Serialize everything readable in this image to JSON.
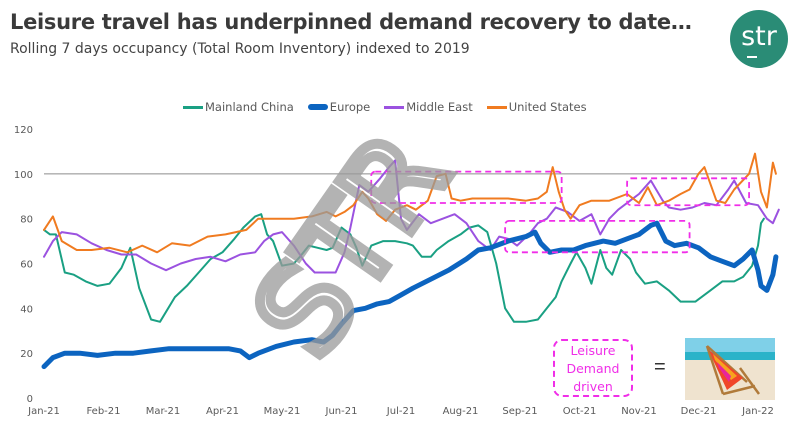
{
  "header": {
    "title": "Leisure travel has underpinned demand recovery to date…",
    "subtitle": "Rolling 7 days occupancy (Total Room Inventory) indexed to 2019",
    "logo_text": "str"
  },
  "annotation": {
    "label_lines": [
      "Leisure",
      "Demand",
      "driven"
    ],
    "equals": "=",
    "image": "beach-chair-photo"
  },
  "watermark": "STR",
  "colors": {
    "mainland_china": "#1aa083",
    "europe": "#0c64c0",
    "middle_east": "#9b52e0",
    "united_states": "#f07b20",
    "highlight": "#f02ee8",
    "reference_line": "#8c8c8c"
  },
  "chart_data": {
    "type": "line",
    "title": "",
    "xlabel": "",
    "ylabel": "",
    "ylim": [
      0,
      120
    ],
    "xlim": [
      0,
      12
    ],
    "yticks": [
      "0",
      "20",
      "40",
      "60",
      "80",
      "100",
      "120"
    ],
    "ytick_values": [
      0,
      20,
      40,
      60,
      80,
      100,
      120
    ],
    "xticks": [
      "Jan-21",
      "Feb-21",
      "Mar-21",
      "Apr-21",
      "May-21",
      "Jun-21",
      "Jul-21",
      "Aug-21",
      "Sep-21",
      "Oct-21",
      "Nov-21",
      "Dec-21",
      "Jan-22"
    ],
    "reference_line": 100,
    "grid": false,
    "legend_position": "top",
    "x_units": "months since Jan-21",
    "series": [
      {
        "name": "Mainland China",
        "key": "mainland_china",
        "points": [
          [
            0,
            75
          ],
          [
            0.1,
            73
          ],
          [
            0.2,
            73
          ],
          [
            0.35,
            56
          ],
          [
            0.5,
            55
          ],
          [
            0.7,
            52
          ],
          [
            0.9,
            50
          ],
          [
            1.1,
            51
          ],
          [
            1.3,
            58
          ],
          [
            1.45,
            67
          ],
          [
            1.6,
            49
          ],
          [
            1.8,
            35
          ],
          [
            1.95,
            34
          ],
          [
            2.2,
            45
          ],
          [
            2.4,
            50
          ],
          [
            2.6,
            56
          ],
          [
            2.8,
            62
          ],
          [
            3.0,
            65
          ],
          [
            3.2,
            71
          ],
          [
            3.35,
            76
          ],
          [
            3.55,
            81
          ],
          [
            3.65,
            82
          ],
          [
            3.75,
            73
          ],
          [
            3.85,
            70
          ],
          [
            4.0,
            59
          ],
          [
            4.2,
            60
          ],
          [
            4.3,
            63
          ],
          [
            4.45,
            68
          ],
          [
            4.6,
            67
          ],
          [
            4.75,
            66
          ],
          [
            4.85,
            67
          ],
          [
            5.0,
            76
          ],
          [
            5.15,
            73
          ],
          [
            5.25,
            67
          ],
          [
            5.35,
            59
          ],
          [
            5.5,
            68
          ],
          [
            5.7,
            70
          ],
          [
            5.9,
            70
          ],
          [
            6.1,
            69
          ],
          [
            6.2,
            68
          ],
          [
            6.35,
            63
          ],
          [
            6.5,
            63
          ],
          [
            6.6,
            66
          ],
          [
            6.8,
            70
          ],
          [
            7.0,
            73
          ],
          [
            7.15,
            76
          ],
          [
            7.3,
            77
          ],
          [
            7.45,
            74
          ],
          [
            7.6,
            60
          ],
          [
            7.75,
            40
          ],
          [
            7.9,
            34
          ],
          [
            8.1,
            34
          ],
          [
            8.3,
            35
          ],
          [
            8.45,
            40
          ],
          [
            8.6,
            45
          ],
          [
            8.7,
            52
          ],
          [
            8.85,
            60
          ],
          [
            8.95,
            65
          ],
          [
            9.1,
            58
          ],
          [
            9.2,
            51
          ],
          [
            9.35,
            66
          ],
          [
            9.45,
            58
          ],
          [
            9.55,
            55
          ],
          [
            9.7,
            66
          ],
          [
            9.85,
            62
          ],
          [
            9.95,
            56
          ],
          [
            10.1,
            51
          ],
          [
            10.3,
            52
          ],
          [
            10.5,
            48
          ],
          [
            10.7,
            43
          ],
          [
            10.95,
            43
          ],
          [
            11.2,
            48
          ],
          [
            11.4,
            52
          ],
          [
            11.6,
            52
          ],
          [
            11.75,
            54
          ],
          [
            11.9,
            59
          ],
          [
            12.0,
            68
          ],
          [
            12.05,
            78
          ],
          [
            12.1,
            80
          ]
        ]
      },
      {
        "name": "Europe",
        "key": "europe",
        "points": [
          [
            0,
            14
          ],
          [
            0.15,
            18
          ],
          [
            0.35,
            20
          ],
          [
            0.6,
            20
          ],
          [
            0.9,
            19
          ],
          [
            1.2,
            20
          ],
          [
            1.5,
            20
          ],
          [
            1.8,
            21
          ],
          [
            2.1,
            22
          ],
          [
            2.5,
            22
          ],
          [
            2.8,
            22
          ],
          [
            3.1,
            22
          ],
          [
            3.3,
            21
          ],
          [
            3.45,
            18
          ],
          [
            3.6,
            20
          ],
          [
            3.9,
            23
          ],
          [
            4.2,
            25
          ],
          [
            4.5,
            26
          ],
          [
            4.7,
            25
          ],
          [
            4.85,
            28
          ],
          [
            5.0,
            33
          ],
          [
            5.2,
            39
          ],
          [
            5.4,
            40
          ],
          [
            5.6,
            42
          ],
          [
            5.8,
            43
          ],
          [
            6.0,
            46
          ],
          [
            6.2,
            49
          ],
          [
            6.5,
            53
          ],
          [
            6.8,
            57
          ],
          [
            7.1,
            62
          ],
          [
            7.3,
            66
          ],
          [
            7.5,
            67
          ],
          [
            7.8,
            70
          ],
          [
            8.1,
            72
          ],
          [
            8.25,
            74
          ],
          [
            8.35,
            69
          ],
          [
            8.5,
            65
          ],
          [
            8.7,
            66
          ],
          [
            8.9,
            66
          ],
          [
            9.1,
            68
          ],
          [
            9.4,
            70
          ],
          [
            9.6,
            69
          ],
          [
            9.8,
            71
          ],
          [
            10.0,
            73
          ],
          [
            10.2,
            77
          ],
          [
            10.3,
            78
          ],
          [
            10.45,
            70
          ],
          [
            10.6,
            68
          ],
          [
            10.8,
            69
          ],
          [
            11.0,
            67
          ],
          [
            11.2,
            63
          ],
          [
            11.4,
            61
          ],
          [
            11.6,
            59
          ],
          [
            11.75,
            62
          ],
          [
            11.9,
            66
          ],
          [
            12.0,
            57
          ],
          [
            12.05,
            50
          ],
          [
            12.15,
            48
          ],
          [
            12.25,
            55
          ],
          [
            12.3,
            63
          ]
        ]
      },
      {
        "name": "Middle East",
        "key": "middle_east",
        "points": [
          [
            0,
            63
          ],
          [
            0.15,
            70
          ],
          [
            0.3,
            74
          ],
          [
            0.55,
            73
          ],
          [
            0.8,
            69
          ],
          [
            1.05,
            66
          ],
          [
            1.3,
            64
          ],
          [
            1.55,
            64
          ],
          [
            1.8,
            60
          ],
          [
            2.05,
            57
          ],
          [
            2.3,
            60
          ],
          [
            2.55,
            62
          ],
          [
            2.8,
            63
          ],
          [
            3.05,
            61
          ],
          [
            3.3,
            64
          ],
          [
            3.55,
            65
          ],
          [
            3.7,
            70
          ],
          [
            3.85,
            73
          ],
          [
            4.0,
            74
          ],
          [
            4.2,
            68
          ],
          [
            4.4,
            60
          ],
          [
            4.55,
            56
          ],
          [
            4.75,
            56
          ],
          [
            4.9,
            56
          ],
          [
            5.05,
            65
          ],
          [
            5.15,
            76
          ],
          [
            5.3,
            95
          ],
          [
            5.45,
            92
          ],
          [
            5.65,
            98
          ],
          [
            5.8,
            103
          ],
          [
            5.9,
            106
          ],
          [
            6.0,
            80
          ],
          [
            6.1,
            75
          ],
          [
            6.3,
            82
          ],
          [
            6.5,
            78
          ],
          [
            6.7,
            80
          ],
          [
            6.9,
            82
          ],
          [
            7.1,
            78
          ],
          [
            7.3,
            70
          ],
          [
            7.5,
            66
          ],
          [
            7.65,
            72
          ],
          [
            7.8,
            71
          ],
          [
            7.95,
            68
          ],
          [
            8.15,
            73
          ],
          [
            8.3,
            78
          ],
          [
            8.45,
            80
          ],
          [
            8.6,
            85
          ],
          [
            8.8,
            83
          ],
          [
            9.0,
            79
          ],
          [
            9.2,
            82
          ],
          [
            9.35,
            73
          ],
          [
            9.5,
            80
          ],
          [
            9.65,
            84
          ],
          [
            9.85,
            88
          ],
          [
            10.0,
            91
          ],
          [
            10.2,
            97
          ],
          [
            10.4,
            88
          ],
          [
            10.5,
            85
          ],
          [
            10.7,
            84
          ],
          [
            10.9,
            85
          ],
          [
            11.1,
            87
          ],
          [
            11.3,
            86
          ],
          [
            11.5,
            93
          ],
          [
            11.6,
            97
          ],
          [
            11.8,
            87
          ],
          [
            12.0,
            86
          ],
          [
            12.15,
            80
          ],
          [
            12.25,
            78
          ],
          [
            12.35,
            84
          ]
        ]
      },
      {
        "name": "United States",
        "key": "united_states",
        "points": [
          [
            0,
            75
          ],
          [
            0.15,
            81
          ],
          [
            0.3,
            70
          ],
          [
            0.55,
            66
          ],
          [
            0.8,
            66
          ],
          [
            1.1,
            67
          ],
          [
            1.4,
            65
          ],
          [
            1.65,
            68
          ],
          [
            1.9,
            65
          ],
          [
            2.15,
            69
          ],
          [
            2.45,
            68
          ],
          [
            2.75,
            72
          ],
          [
            3.05,
            73
          ],
          [
            3.4,
            75
          ],
          [
            3.6,
            80
          ],
          [
            3.85,
            80
          ],
          [
            4.2,
            80
          ],
          [
            4.5,
            81
          ],
          [
            4.75,
            83
          ],
          [
            4.9,
            81
          ],
          [
            5.05,
            83
          ],
          [
            5.2,
            86
          ],
          [
            5.35,
            92
          ],
          [
            5.45,
            89
          ],
          [
            5.6,
            82
          ],
          [
            5.75,
            79
          ],
          [
            5.9,
            84
          ],
          [
            6.1,
            86
          ],
          [
            6.25,
            84
          ],
          [
            6.45,
            88
          ],
          [
            6.6,
            99
          ],
          [
            6.75,
            100
          ],
          [
            6.85,
            89
          ],
          [
            7.0,
            88
          ],
          [
            7.2,
            89
          ],
          [
            7.5,
            89
          ],
          [
            7.8,
            89
          ],
          [
            8.1,
            88
          ],
          [
            8.3,
            89
          ],
          [
            8.45,
            92
          ],
          [
            8.55,
            103
          ],
          [
            8.65,
            92
          ],
          [
            8.75,
            84
          ],
          [
            8.85,
            80
          ],
          [
            9.0,
            86
          ],
          [
            9.2,
            88
          ],
          [
            9.5,
            88
          ],
          [
            9.8,
            91
          ],
          [
            10.0,
            87
          ],
          [
            10.15,
            94
          ],
          [
            10.3,
            86
          ],
          [
            10.5,
            88
          ],
          [
            10.7,
            91
          ],
          [
            10.85,
            93
          ],
          [
            11.0,
            100
          ],
          [
            11.1,
            103
          ],
          [
            11.3,
            88
          ],
          [
            11.45,
            87
          ],
          [
            11.6,
            93
          ],
          [
            11.85,
            100
          ],
          [
            11.95,
            109
          ],
          [
            12.05,
            92
          ],
          [
            12.15,
            85
          ],
          [
            12.25,
            105
          ],
          [
            12.3,
            100
          ]
        ]
      }
    ],
    "highlight_boxes": [
      {
        "x0": 5.5,
        "x1": 8.7,
        "y0": 87,
        "y1": 101
      },
      {
        "x0": 7.75,
        "x1": 10.85,
        "y0": 65,
        "y1": 79
      },
      {
        "x0": 9.8,
        "x1": 11.85,
        "y0": 86,
        "y1": 98
      }
    ]
  }
}
